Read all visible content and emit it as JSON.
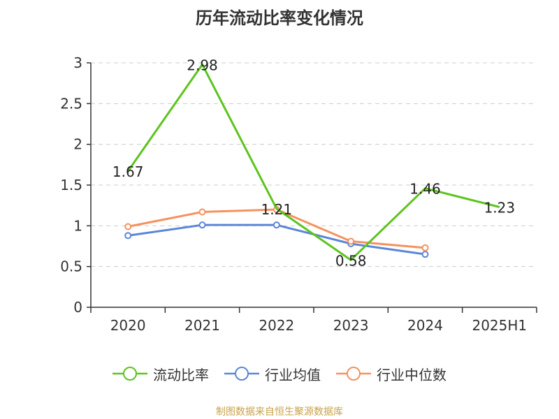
{
  "title": "历年流动比率变化情况",
  "source": "制图数据来自恒生聚源数据库",
  "chart_data": {
    "type": "line",
    "categories": [
      "2020",
      "2021",
      "2022",
      "2023",
      "2024",
      "2025H1"
    ],
    "ylim": [
      0,
      3
    ],
    "yticks": [
      0,
      0.5,
      1,
      1.5,
      2,
      2.5,
      3
    ],
    "ytick_labels": [
      "0",
      "0.5",
      "1",
      "1.5",
      "2",
      "2.5",
      "3"
    ],
    "grid": true,
    "legend_position": "bottom",
    "series": [
      {
        "name": "流动比率",
        "color": "#5cc41f",
        "values": [
          1.67,
          2.98,
          1.21,
          0.58,
          1.46,
          1.23
        ],
        "labels": [
          "1.67",
          "2.98",
          "1.21",
          "0.58",
          "1.46",
          "1.23"
        ],
        "show_markers": false
      },
      {
        "name": "行业均值",
        "color": "#5b86d9",
        "values": [
          0.88,
          1.01,
          1.01,
          0.78,
          0.65,
          null
        ],
        "show_markers": true
      },
      {
        "name": "行业中位数",
        "color": "#f5925e",
        "values": [
          0.99,
          1.17,
          1.2,
          0.81,
          0.73,
          null
        ],
        "show_markers": true
      }
    ]
  }
}
